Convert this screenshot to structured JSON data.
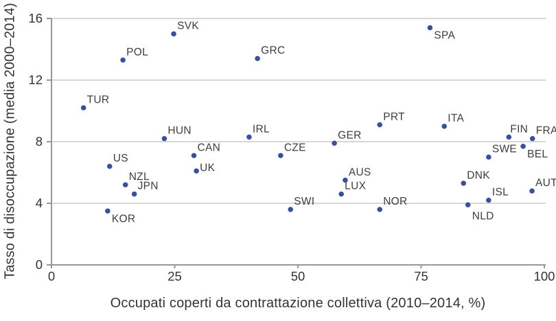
{
  "chart_data": {
    "type": "scatter",
    "title": "",
    "xlabel": "Occupati coperti da contrattazione collettiva (2010–2014, %)",
    "ylabel": "Tasso di disoccupazione (media 2000–2014)",
    "xlim": [
      0,
      100
    ],
    "ylim": [
      0,
      16
    ],
    "x_ticks": [
      "0",
      "25",
      "50",
      "75",
      "100"
    ],
    "y_ticks": [
      "0",
      "4",
      "8",
      "12",
      "16"
    ],
    "grid": "horizontal-gridlines-only",
    "legend_position": "none",
    "colors": {
      "point": "#3b4fa0",
      "grid_line": "#cacaca",
      "axis_line": "#979797",
      "tick_text": "#333333",
      "label_text": "#3d3d3d",
      "background": "#ffffff"
    },
    "points": [
      {
        "code": "TUR",
        "x": 6.5,
        "y": 10.2,
        "label_pos": "above-right"
      },
      {
        "code": "KOR",
        "x": 11.4,
        "y": 3.5,
        "label_pos": "below-right"
      },
      {
        "code": "US",
        "x": 11.8,
        "y": 6.4,
        "label_pos": "above-right"
      },
      {
        "code": "POL",
        "x": 14.5,
        "y": 13.3,
        "label_pos": "above-right"
      },
      {
        "code": "NZL",
        "x": 15.0,
        "y": 5.2,
        "label_pos": "above-right"
      },
      {
        "code": "JPN",
        "x": 16.8,
        "y": 4.6,
        "label_pos": "above-right"
      },
      {
        "code": "HUN",
        "x": 22.9,
        "y": 8.2,
        "label_pos": "above-right"
      },
      {
        "code": "SVK",
        "x": 24.8,
        "y": 15.0,
        "label_pos": "above-right"
      },
      {
        "code": "CAN",
        "x": 28.9,
        "y": 7.1,
        "label_pos": "above-right"
      },
      {
        "code": "UK",
        "x": 29.4,
        "y": 6.1,
        "label_pos": "above-right",
        "ldy": 7
      },
      {
        "code": "IRL",
        "x": 40.1,
        "y": 8.3,
        "label_pos": "above-right"
      },
      {
        "code": "GRC",
        "x": 41.8,
        "y": 13.4,
        "label_pos": "above-right"
      },
      {
        "code": "CZE",
        "x": 46.5,
        "y": 7.1,
        "label_pos": "above-right"
      },
      {
        "code": "SWI",
        "x": 48.5,
        "y": 3.6,
        "label_pos": "above-right"
      },
      {
        "code": "GER",
        "x": 57.4,
        "y": 7.9,
        "label_pos": "above-right"
      },
      {
        "code": "LUX",
        "x": 58.8,
        "y": 4.6,
        "label_pos": "above-right"
      },
      {
        "code": "AUS",
        "x": 59.6,
        "y": 5.5,
        "label_pos": "above-right"
      },
      {
        "code": "NOR",
        "x": 66.6,
        "y": 3.6,
        "label_pos": "above-right"
      },
      {
        "code": "PRT",
        "x": 66.6,
        "y": 9.1,
        "label_pos": "above-right"
      },
      {
        "code": "SPA",
        "x": 76.8,
        "y": 15.4,
        "label_pos": "below-right"
      },
      {
        "code": "ITA",
        "x": 79.7,
        "y": 9.0,
        "label_pos": "above-right"
      },
      {
        "code": "DNK",
        "x": 83.6,
        "y": 5.3,
        "label_pos": "above-right"
      },
      {
        "code": "NLD",
        "x": 84.5,
        "y": 3.9,
        "label_pos": "below-right",
        "ldy": 5
      },
      {
        "code": "ISL",
        "x": 88.7,
        "y": 4.2,
        "label_pos": "above-right"
      },
      {
        "code": "SWE",
        "x": 88.7,
        "y": 7.0,
        "label_pos": "above-right"
      },
      {
        "code": "FIN",
        "x": 92.8,
        "y": 8.3,
        "label_pos": "above-right",
        "ldx": -3
      },
      {
        "code": "BEL",
        "x": 95.7,
        "y": 7.7,
        "label_pos": "below-right"
      },
      {
        "code": "FRA",
        "x": 97.6,
        "y": 8.2,
        "label_pos": "above-right"
      },
      {
        "code": "AUT",
        "x": 97.5,
        "y": 4.8,
        "label_pos": "above-right"
      }
    ]
  }
}
